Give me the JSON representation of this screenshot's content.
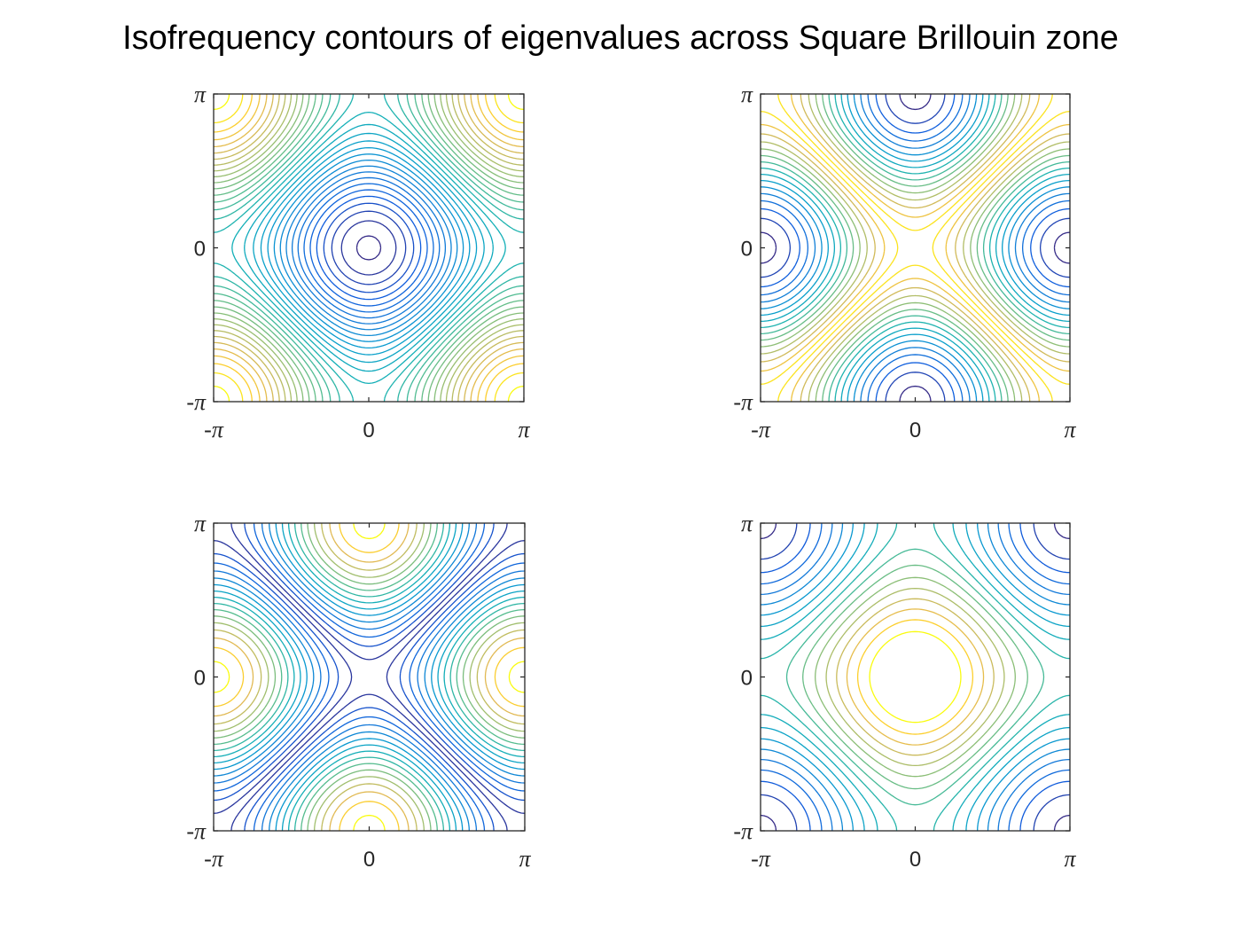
{
  "title": "Isofrequency contours of eigenvalues across Square Brillouin zone",
  "chart_data": [
    {
      "type": "contour",
      "function": "cos(kx) + cos(ky)",
      "xlim": [
        "-π",
        "π"
      ],
      "ylim": [
        "-π",
        "π"
      ],
      "xticks": [
        "-π",
        "0",
        "π"
      ],
      "yticks": [
        "-π",
        "0",
        "π"
      ],
      "levels": {
        "min": -1.95,
        "max": 1.97,
        "count": 34,
        "lines_in_range": [
          -1.9,
          1.0
        ]
      },
      "colormap": "parula",
      "color_direction": "increasing value -> yellow at low end, blue toward center",
      "grid": false
    },
    {
      "type": "contour",
      "function": "cos(kx) - cos(ky)",
      "xlim": [
        "-π",
        "π"
      ],
      "ylim": [
        "-π",
        "π"
      ],
      "xticks": [
        "-π",
        "0",
        "π"
      ],
      "yticks": [
        "-π",
        "0",
        "π"
      ],
      "levels": {
        "min": -1.95,
        "max": 1.95,
        "count": 32
      },
      "colormap": "parula",
      "color_direction": "yellow near zero, blue near edges",
      "grid": false
    },
    {
      "type": "contour",
      "function": "cos(kx) - cos(ky)",
      "xlim": [
        "-π",
        "π"
      ],
      "ylim": [
        "-π",
        "π"
      ],
      "xticks": [
        "-π",
        "0",
        "π"
      ],
      "yticks": [
        "-π",
        "0",
        "π"
      ],
      "levels": {
        "min": -1.95,
        "max": 1.95,
        "count": 32
      },
      "colormap": "parula",
      "color_direction": "blue near zero, yellow near edges",
      "grid": false
    },
    {
      "type": "contour",
      "function": "cos(kx) + cos(ky)",
      "xlim": [
        "-π",
        "π"
      ],
      "ylim": [
        "-π",
        "π"
      ],
      "xticks": [
        "-π",
        "0",
        "π"
      ],
      "yticks": [
        "-π",
        "0",
        "π"
      ],
      "levels": {
        "min": -1.95,
        "max": 1.6,
        "count": 18
      },
      "colormap": "parula",
      "color_direction": "yellow at center, blue at corners",
      "grid": false
    }
  ]
}
